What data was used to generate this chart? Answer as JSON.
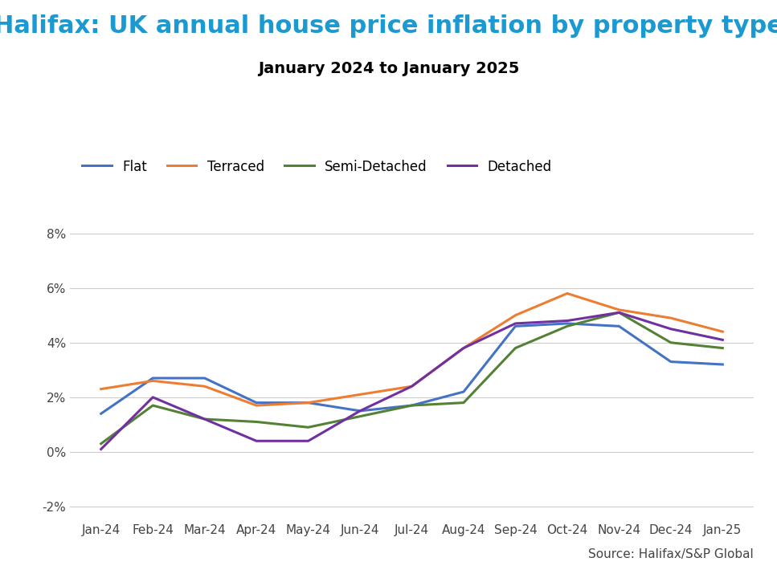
{
  "title": "Halifax: UK annual house price inflation by property type",
  "subtitle": "January 2024 to January 2025",
  "source": "Source: Halifax/S&P Global",
  "title_color": "#1B9AD2",
  "subtitle_color": "#000000",
  "x_labels": [
    "Jan-24",
    "Feb-24",
    "Mar-24",
    "Apr-24",
    "May-24",
    "Jun-24",
    "Jul-24",
    "Aug-24",
    "Sep-24",
    "Oct-24",
    "Nov-24",
    "Dec-24",
    "Jan-25"
  ],
  "series": [
    {
      "label": "Flat",
      "color": "#4472C4",
      "values": [
        1.4,
        2.7,
        2.7,
        1.8,
        1.8,
        1.5,
        1.7,
        2.2,
        4.6,
        4.7,
        4.6,
        3.3,
        3.2
      ]
    },
    {
      "label": "Terraced",
      "color": "#ED7D31",
      "values": [
        2.3,
        2.6,
        2.4,
        1.7,
        1.8,
        2.1,
        2.4,
        3.8,
        5.0,
        5.8,
        5.2,
        4.9,
        4.4
      ]
    },
    {
      "label": "Semi-Detached",
      "color": "#548235",
      "values": [
        0.3,
        1.7,
        1.2,
        1.1,
        0.9,
        1.3,
        1.7,
        1.8,
        3.8,
        4.6,
        5.1,
        4.0,
        3.8
      ]
    },
    {
      "label": "Detached",
      "color": "#7030A0",
      "values": [
        0.1,
        2.0,
        1.2,
        0.4,
        0.4,
        1.5,
        2.4,
        3.8,
        4.7,
        4.8,
        5.1,
        4.5,
        4.1
      ]
    }
  ],
  "ylim": [
    -2.5,
    8.5
  ],
  "yticks": [
    -2,
    0,
    2,
    4,
    6,
    8
  ],
  "ytick_labels": [
    "-2%",
    "0%",
    "2%",
    "4%",
    "6%",
    "8%"
  ],
  "linewidth": 2.2,
  "legend_fontsize": 12,
  "title_fontsize": 22,
  "subtitle_fontsize": 14,
  "source_fontsize": 11,
  "tick_fontsize": 11
}
